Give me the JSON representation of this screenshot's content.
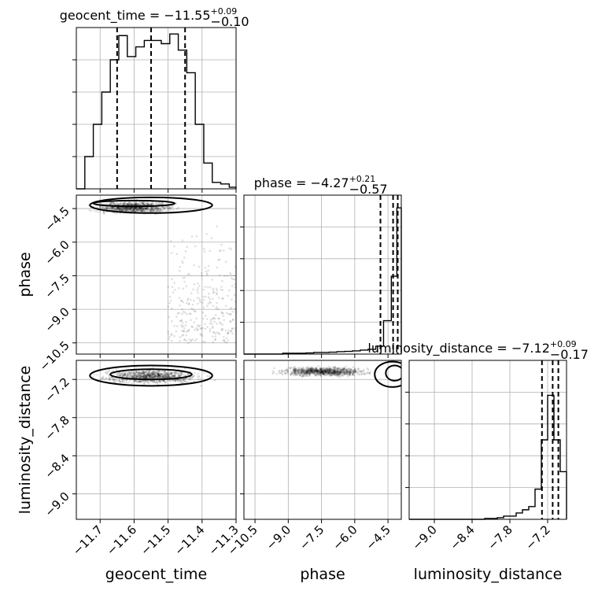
{
  "chart_data": {
    "type": "corner",
    "parameters": [
      {
        "name": "geocent_time",
        "label": "geocent_time",
        "title_prefix": "geocent_time = ",
        "median": "−11.55",
        "plus": "+0.09",
        "minus": "−0.10",
        "range": [
          -11.77,
          -11.3
        ],
        "ticks": [
          -11.7,
          -11.6,
          -11.5,
          -11.4,
          -11.3
        ],
        "tick_labels": [
          "−11.7",
          "−11.6",
          "−11.5",
          "−11.4",
          "−11.3"
        ],
        "quantiles": [
          -11.65,
          -11.55,
          -11.45
        ],
        "hist_edges": [
          -11.77,
          -11.745,
          -11.72,
          -11.695,
          -11.67,
          -11.645,
          -11.62,
          -11.595,
          -11.57,
          -11.545,
          -11.52,
          -11.495,
          -11.47,
          -11.445,
          -11.42,
          -11.395,
          -11.37,
          -11.345,
          -11.32,
          -11.3
        ],
        "hist_values": [
          0,
          0.2,
          0.4,
          0.6,
          0.8,
          0.95,
          0.82,
          0.88,
          0.92,
          0.92,
          0.9,
          0.96,
          0.86,
          0.72,
          0.4,
          0.16,
          0.04,
          0.03,
          0.01
        ]
      },
      {
        "name": "phase",
        "label": "phase",
        "title_prefix": "phase = ",
        "median": "−4.27",
        "plus": "+0.21",
        "minus": "−0.57",
        "range": [
          -11.0,
          -3.9
        ],
        "ticks": [
          -10.5,
          -9.0,
          -7.5,
          -6.0,
          -4.5
        ],
        "tick_labels": [
          "−10.5",
          "−9.0",
          "−7.5",
          "−6.0",
          "−4.5"
        ],
        "quantiles": [
          -4.84,
          -4.27,
          -4.06
        ],
        "hist_edges": [
          -11.0,
          -10.65,
          -10.3,
          -9.95,
          -9.6,
          -9.25,
          -8.9,
          -8.55,
          -8.2,
          -7.85,
          -7.5,
          -7.15,
          -6.8,
          -6.45,
          -6.1,
          -5.75,
          -5.4,
          -5.05,
          -4.7,
          -4.35,
          -4.1,
          -3.9
        ],
        "hist_values": [
          0,
          0,
          0,
          0,
          0,
          0.005,
          0.005,
          0.005,
          0.007,
          0.01,
          0.01,
          0.012,
          0.015,
          0.017,
          0.02,
          0.025,
          0.03,
          0.05,
          0.21,
          0.49,
          0.92
        ]
      },
      {
        "name": "luminosity_distance",
        "label": "luminosity_distance",
        "title_prefix": "luminosity_distance = ",
        "median": "−7.12",
        "plus": "+0.09",
        "minus": "−0.17",
        "range": [
          -9.4,
          -6.9
        ],
        "ticks": [
          -9.0,
          -8.4,
          -7.8,
          -7.2
        ],
        "tick_labels": [
          "−9.0",
          "−8.4",
          "−7.8",
          "−7.2"
        ],
        "quantiles": [
          -7.29,
          -7.12,
          -7.03
        ],
        "hist_edges": [
          -9.4,
          -9.2,
          -9.0,
          -8.8,
          -8.6,
          -8.4,
          -8.2,
          -8.0,
          -7.9,
          -7.8,
          -7.7,
          -7.6,
          -7.5,
          -7.4,
          -7.3,
          -7.2,
          -7.1,
          -7.0,
          -6.9
        ],
        "hist_values": [
          0,
          0,
          0,
          0,
          0,
          0,
          0.005,
          0.01,
          0.02,
          0.02,
          0.04,
          0.06,
          0.08,
          0.19,
          0.5,
          0.78,
          0.5,
          0.3
        ]
      }
    ],
    "posterior_2d": {
      "phase_vs_geocent_time": {
        "bulk": {
          "x": [
            -11.8,
            -11.4
          ],
          "y": [
            -4.9,
            -4.0
          ]
        },
        "tail": {
          "x": [
            -11.5,
            -11.3
          ],
          "y": [
            -10.5,
            -5.0
          ]
        },
        "contours": [
          {
            "center": [
              -11.6,
              -4.27
            ],
            "half_width": [
              0.12,
              0.13
            ]
          },
          {
            "center": [
              -11.55,
              -4.35
            ],
            "half_width": [
              0.18,
              0.35
            ]
          }
        ]
      },
      "luminosity_distance_vs_geocent_time": {
        "bulk": {
          "x": [
            -11.8,
            -11.3
          ],
          "y": [
            -7.35,
            -6.95
          ]
        },
        "contours": [
          {
            "center": [
              -11.55,
              -7.12
            ],
            "half_width": [
              0.12,
              0.08
            ]
          },
          {
            "center": [
              -11.55,
              -7.14
            ],
            "half_width": [
              0.18,
              0.16
            ]
          }
        ]
      },
      "luminosity_distance_vs_phase": {
        "bulk": {
          "x": [
            -10.8,
            -4.0
          ],
          "y": [
            -7.2,
            -6.95
          ]
        },
        "contours": [
          {
            "center": [
              -4.2,
              -7.1
            ],
            "half_width": [
              0.4,
              0.12
            ]
          },
          {
            "center": [
              -4.3,
              -7.12
            ],
            "half_width": [
              0.8,
              0.2
            ]
          }
        ]
      }
    }
  }
}
